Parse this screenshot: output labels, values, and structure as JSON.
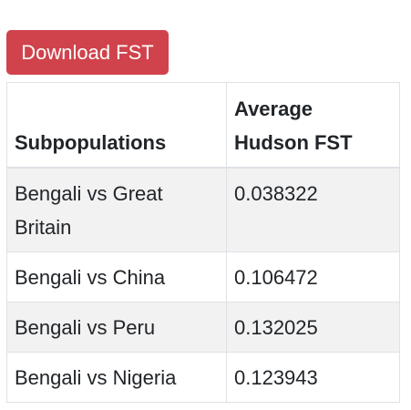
{
  "toolbar": {
    "download_label": "Download FST"
  },
  "table": {
    "headers": [
      "Subpopulations",
      "Average Hudson FST"
    ],
    "rows": [
      {
        "pair": "Bengali vs Great Britain",
        "fst": "0.038322"
      },
      {
        "pair": "Bengali vs China",
        "fst": "0.106472"
      },
      {
        "pair": "Bengali vs Peru",
        "fst": "0.132025"
      },
      {
        "pair": "Bengali vs Nigeria",
        "fst": "0.123943"
      }
    ]
  },
  "colors": {
    "button_bg": "#d0434c",
    "stripe_bg": "#f2f2f2",
    "border": "#dee2e6"
  }
}
